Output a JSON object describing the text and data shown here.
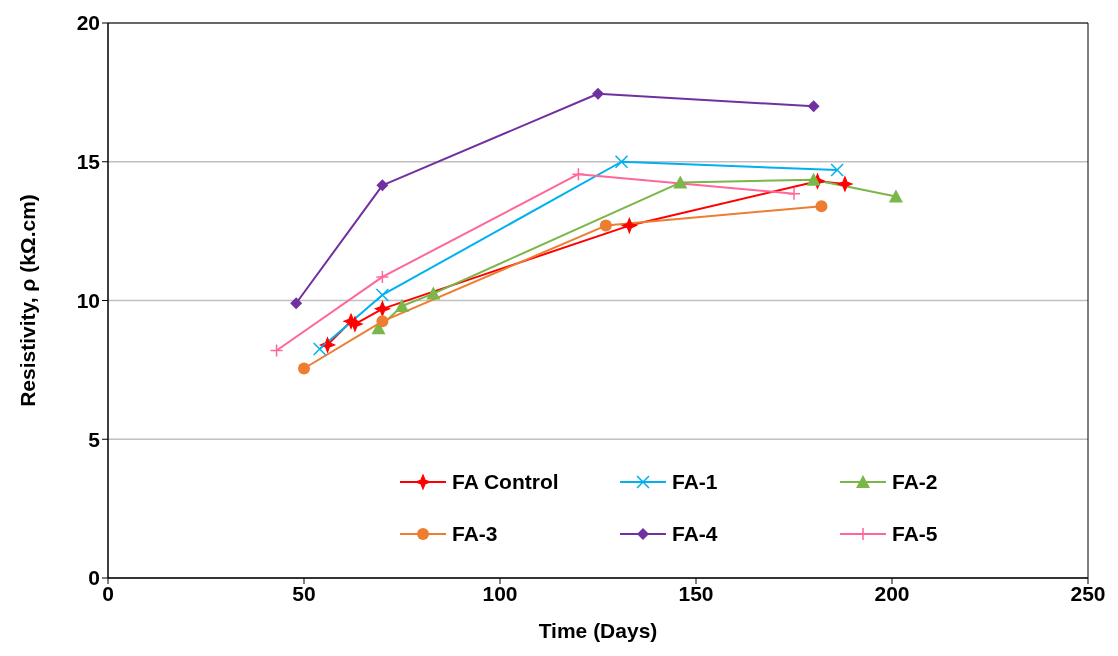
{
  "chart_data": {
    "type": "line",
    "xlabel": "Time (Days)",
    "ylabel": "Resistivity, ρ (kΩ.cm)",
    "xlim": [
      0,
      250
    ],
    "xticks": [
      0,
      50,
      100,
      150,
      200,
      250
    ],
    "ylim": [
      0,
      20
    ],
    "yticks": [
      0,
      5,
      10,
      15,
      20
    ],
    "grid": "y",
    "legend": "bottom",
    "series": [
      {
        "name": "FA Control",
        "color": "#ff0000",
        "marker": "star",
        "x": [
          56,
          62,
          63,
          70,
          133,
          181,
          188
        ],
        "values": [
          8.4,
          9.25,
          9.15,
          9.7,
          12.7,
          14.3,
          14.2
        ]
      },
      {
        "name": "FA-1",
        "color": "#00b0f0",
        "marker": "cross",
        "x": [
          54,
          70,
          131,
          186
        ],
        "values": [
          8.25,
          10.2,
          15.0,
          14.7
        ]
      },
      {
        "name": "FA-2",
        "color": "#7ab648",
        "marker": "triangle",
        "x": [
          69,
          75,
          83,
          146,
          180,
          201
        ],
        "values": [
          9.0,
          9.8,
          10.25,
          14.25,
          14.35,
          13.75
        ]
      },
      {
        "name": "FA-3",
        "color": "#ed7d31",
        "marker": "circle",
        "x": [
          50,
          70,
          127,
          182
        ],
        "values": [
          7.55,
          9.25,
          12.7,
          13.4
        ]
      },
      {
        "name": "FA-4",
        "color": "#7030a0",
        "marker": "diamond",
        "x": [
          48,
          70,
          125,
          180
        ],
        "values": [
          9.9,
          14.15,
          17.45,
          17.0
        ]
      },
      {
        "name": "FA-5",
        "color": "#ff6699",
        "marker": "plus",
        "x": [
          43,
          70,
          120,
          175
        ],
        "values": [
          8.2,
          10.85,
          14.55,
          13.85
        ]
      }
    ]
  }
}
